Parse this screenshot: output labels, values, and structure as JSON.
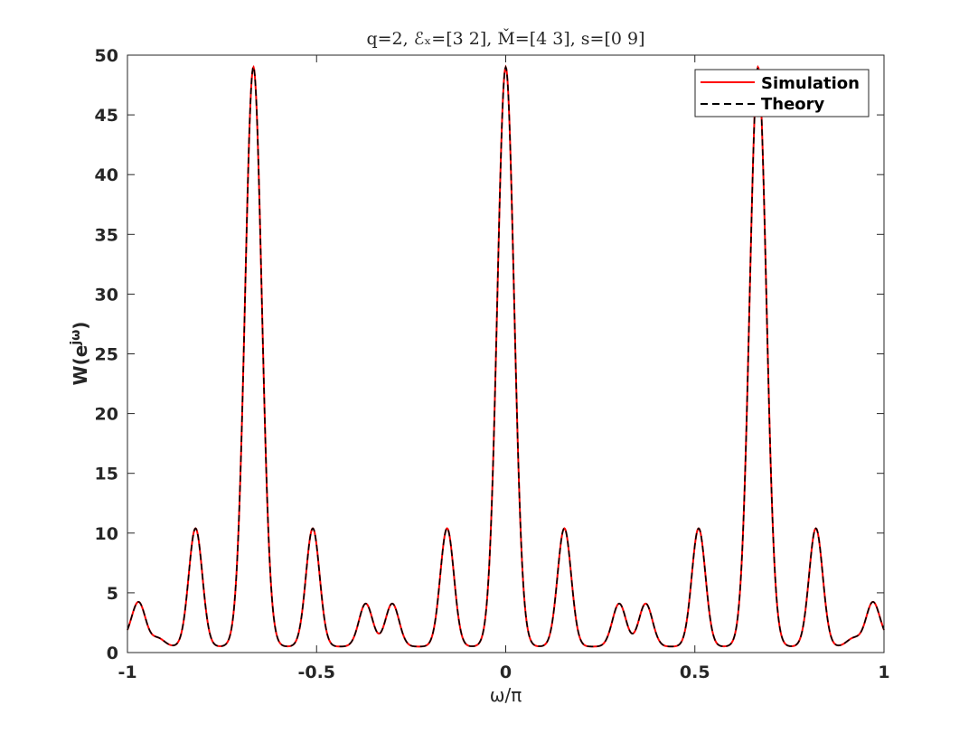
{
  "chart_data": {
    "type": "line",
    "title": "q=2, ℰₓ=[3 2], M̌=[4 3], s=[0 9]",
    "xlabel": "ω/π",
    "ylabel": "W(e^{jω})",
    "ylabel_base": "W(e",
    "ylabel_sup": "jω",
    "ylabel_close": ")",
    "xlim": [
      -1,
      1
    ],
    "ylim": [
      0,
      50
    ],
    "xticks": [
      -1,
      -0.5,
      0,
      0.5,
      1
    ],
    "xtick_labels": [
      "-1",
      "-0.5",
      "0",
      "0.5",
      "1"
    ],
    "yticks": [
      0,
      5,
      10,
      15,
      20,
      25,
      30,
      35,
      40,
      45,
      50
    ],
    "ytick_labels": [
      "0",
      "5",
      "10",
      "15",
      "20",
      "25",
      "30",
      "35",
      "40",
      "45",
      "50"
    ],
    "grid": false,
    "legend_position": "top-right",
    "series": [
      {
        "name": "Simulation",
        "color": "#ff0000",
        "style": "solid"
      },
      {
        "name": "Theory",
        "color": "#000000",
        "style": "dashed"
      }
    ],
    "peaks": [
      {
        "x": -1.0,
        "y": 1.0
      },
      {
        "x": -0.97,
        "y": 4.1
      },
      {
        "x": -0.92,
        "y": 1.2
      },
      {
        "x": -0.82,
        "y": 10.4
      },
      {
        "x": -0.667,
        "y": 49.0
      },
      {
        "x": -0.51,
        "y": 10.4
      },
      {
        "x": -0.37,
        "y": 4.1
      },
      {
        "x": -0.3,
        "y": 4.1
      },
      {
        "x": -0.155,
        "y": 10.4
      },
      {
        "x": 0.0,
        "y": 49.0
      },
      {
        "x": 0.155,
        "y": 10.4
      },
      {
        "x": 0.3,
        "y": 4.1
      },
      {
        "x": 0.37,
        "y": 4.1
      },
      {
        "x": 0.51,
        "y": 10.4
      },
      {
        "x": 0.667,
        "y": 49.0
      },
      {
        "x": 0.82,
        "y": 10.4
      },
      {
        "x": 0.92,
        "y": 1.2
      },
      {
        "x": 0.97,
        "y": 4.1
      },
      {
        "x": 1.0,
        "y": 1.0
      }
    ]
  }
}
